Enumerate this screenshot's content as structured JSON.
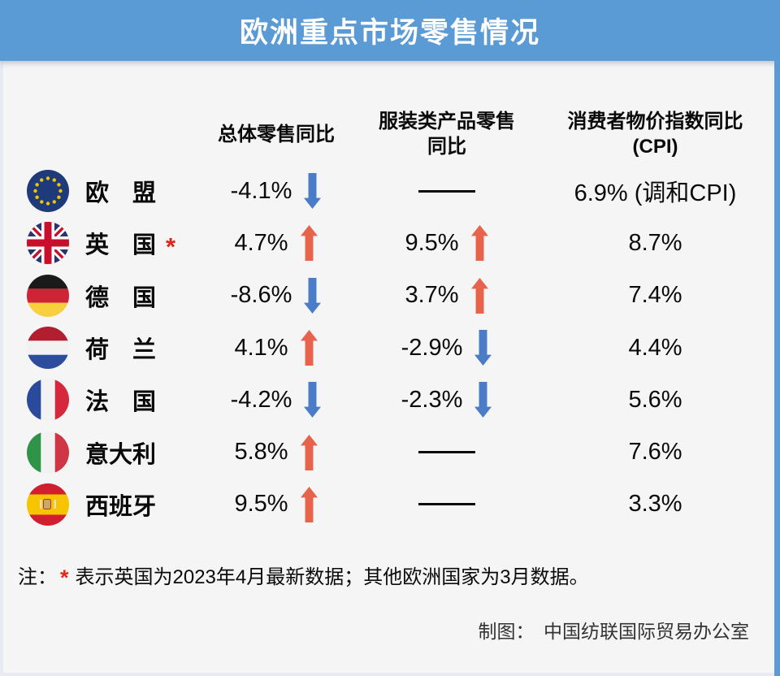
{
  "title": "欧洲重点市场零售情况",
  "colors": {
    "header_bg": "#5B9BD5",
    "body_bg": "#F5F5F6",
    "up_arrow": "#E8634C",
    "down_arrow": "#4A7CC7",
    "asterisk_red": "#E1251B"
  },
  "table": {
    "column_headers": [
      {
        "lines": [
          "总体零售同比"
        ]
      },
      {
        "lines": [
          "服装类产品零售",
          "同比"
        ]
      },
      {
        "lines": [
          "消费者物价指数同比",
          "(CPI)"
        ]
      }
    ],
    "no_data_symbol": "——",
    "rows": [
      {
        "flag_icon": "eu-flag-icon",
        "country": "欧　盟",
        "asterisk": false,
        "overall_retail": {
          "value": "-4.1%",
          "trend": "down"
        },
        "clothing_retail": {
          "value": "——",
          "trend": null
        },
        "cpi": "6.9% (调和CPI)"
      },
      {
        "flag_icon": "uk-flag-icon",
        "country": "英　国",
        "asterisk": true,
        "overall_retail": {
          "value": "4.7%",
          "trend": "up"
        },
        "clothing_retail": {
          "value": "9.5%",
          "trend": "up"
        },
        "cpi": "8.7%"
      },
      {
        "flag_icon": "germany-flag-icon",
        "country": "德　国",
        "asterisk": false,
        "overall_retail": {
          "value": "-8.6%",
          "trend": "down"
        },
        "clothing_retail": {
          "value": "3.7%",
          "trend": "up"
        },
        "cpi": "7.4%"
      },
      {
        "flag_icon": "netherlands-flag-icon",
        "country": "荷　兰",
        "asterisk": false,
        "overall_retail": {
          "value": "4.1%",
          "trend": "up"
        },
        "clothing_retail": {
          "value": "-2.9%",
          "trend": "down"
        },
        "cpi": "4.4%"
      },
      {
        "flag_icon": "france-flag-icon",
        "country": "法　国",
        "asterisk": false,
        "overall_retail": {
          "value": "-4.2%",
          "trend": "down"
        },
        "clothing_retail": {
          "value": "-2.3%",
          "trend": "down"
        },
        "cpi": "5.6%"
      },
      {
        "flag_icon": "italy-flag-icon",
        "country": "意大利",
        "asterisk": false,
        "overall_retail": {
          "value": "5.8%",
          "trend": "up"
        },
        "clothing_retail": {
          "value": "——",
          "trend": null
        },
        "cpi": "7.6%"
      },
      {
        "flag_icon": "spain-flag-icon",
        "country": "西班牙",
        "asterisk": false,
        "overall_retail": {
          "value": "9.5%",
          "trend": "up"
        },
        "clothing_retail": {
          "value": "——",
          "trend": null
        },
        "cpi": "3.3%"
      }
    ]
  },
  "note": {
    "prefix": "注：",
    "star": "*",
    "text": "表示英国为2023年4月最新数据；其他欧洲国家为3月数据。"
  },
  "credit": "制图：　中国纺联国际贸易办公室",
  "chart_data": {
    "type": "table",
    "title": "欧洲重点市场零售情况",
    "columns": [
      "",
      "总体零售同比",
      "服装类产品零售同比",
      "消费者物价指数同比(CPI)"
    ],
    "rows": [
      [
        "欧盟",
        "-4.1%",
        null,
        "6.9% (调和CPI)"
      ],
      [
        "英国*",
        "4.7%",
        "9.5%",
        "8.7%"
      ],
      [
        "德国",
        "-8.6%",
        "3.7%",
        "7.4%"
      ],
      [
        "荷兰",
        "4.1%",
        "-2.9%",
        "4.4%"
      ],
      [
        "法国",
        "-4.2%",
        "-2.3%",
        "5.6%"
      ],
      [
        "意大利",
        "5.8%",
        null,
        "7.6%"
      ],
      [
        "西班牙",
        "9.5%",
        null,
        "3.3%"
      ]
    ],
    "trends": {
      "总体零售同比": [
        "down",
        "up",
        "down",
        "up",
        "down",
        "up",
        "up"
      ],
      "服装类产品零售同比": [
        null,
        "up",
        "up",
        "down",
        "down",
        null,
        null
      ]
    },
    "annotations": [
      "注：* 表示英国为2023年4月最新数据；其他欧洲国家为3月数据。",
      "制图：　中国纺联国际贸易办公室"
    ]
  }
}
